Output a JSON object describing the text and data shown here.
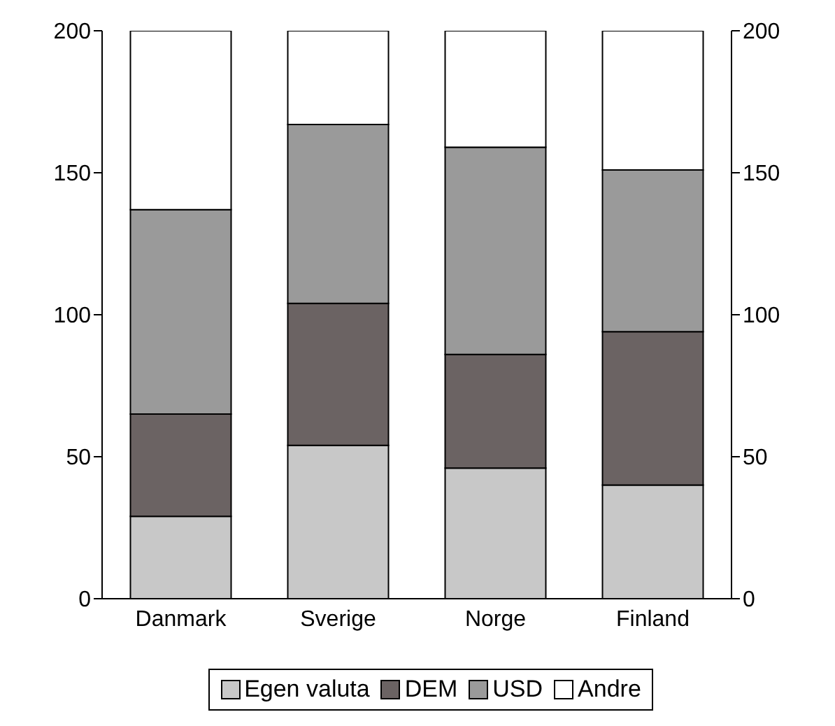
{
  "chart_data": {
    "type": "bar",
    "stacked": true,
    "categories": [
      "Danmark",
      "Sverige",
      "Norge",
      "Finland"
    ],
    "series": [
      {
        "name": "Egen valuta",
        "color": "#c8c8c8",
        "values": [
          29,
          54,
          46,
          40
        ]
      },
      {
        "name": "DEM",
        "color": "#6b6363",
        "values": [
          36,
          50,
          40,
          54
        ]
      },
      {
        "name": "USD",
        "color": "#9a9a9a",
        "values": [
          72,
          63,
          73,
          57
        ]
      },
      {
        "name": "Andre",
        "color": "#ffffff",
        "values": [
          63,
          33,
          41,
          49
        ]
      }
    ],
    "ylim": [
      0,
      200
    ],
    "yticks": [
      0,
      50,
      100,
      150,
      200
    ],
    "y2lim": [
      0,
      200
    ],
    "y2ticks": [
      0,
      50,
      100,
      150,
      200
    ],
    "legend": "bottom"
  }
}
